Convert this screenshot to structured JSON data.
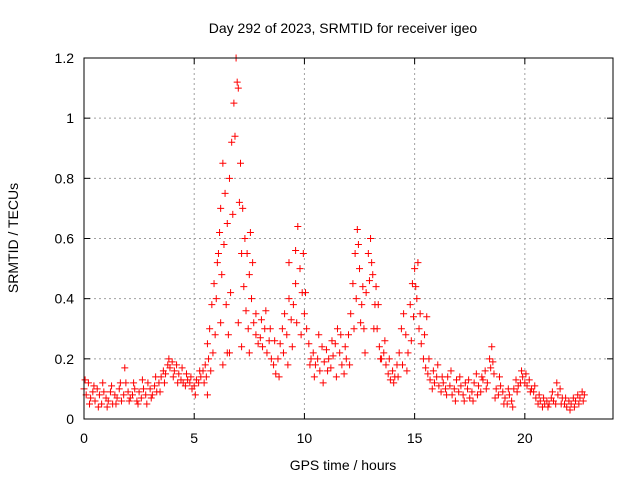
{
  "chart_data": {
    "type": "scatter",
    "title": "Day 292 of 2023, SRMTID for receiver igeo",
    "xlabel": "GPS time / hours",
    "ylabel": "SRMTID / TECUs",
    "xlim": [
      0,
      24
    ],
    "ylim": [
      0,
      1.2
    ],
    "xticks": [
      0,
      5,
      10,
      15,
      20
    ],
    "xtick_labels": [
      "0",
      "5",
      "10",
      "15",
      "20"
    ],
    "yticks": [
      0,
      0.2,
      0.4,
      0.6,
      0.8,
      1.0,
      1.2
    ],
    "ytick_labels": [
      "0",
      "0.2",
      "0.4",
      "0.6",
      "0.8",
      "1",
      "1.2"
    ],
    "grid": true,
    "marker": "plus",
    "series_color": "#ff0000",
    "points": [
      [
        0.0,
        0.1
      ],
      [
        0.1,
        0.08
      ],
      [
        0.2,
        0.12
      ],
      [
        0.3,
        0.07
      ],
      [
        0.4,
        0.09
      ],
      [
        0.5,
        0.06
      ],
      [
        0.6,
        0.1
      ],
      [
        0.7,
        0.08
      ],
      [
        0.8,
        0.05
      ],
      [
        0.9,
        0.09
      ],
      [
        1.0,
        0.07
      ],
      [
        1.1,
        0.06
      ],
      [
        1.2,
        0.09
      ],
      [
        1.3,
        0.05
      ],
      [
        1.4,
        0.08
      ],
      [
        1.5,
        0.07
      ],
      [
        1.6,
        0.1
      ],
      [
        1.7,
        0.06
      ],
      [
        1.8,
        0.08
      ],
      [
        1.9,
        0.12
      ],
      [
        2.0,
        0.09
      ],
      [
        2.1,
        0.07
      ],
      [
        2.2,
        0.08
      ],
      [
        2.3,
        0.1
      ],
      [
        2.4,
        0.06
      ],
      [
        2.5,
        0.09
      ],
      [
        2.6,
        0.07
      ],
      [
        2.7,
        0.1
      ],
      [
        2.8,
        0.08
      ],
      [
        2.9,
        0.12
      ],
      [
        3.0,
        0.1
      ],
      [
        3.1,
        0.08
      ],
      [
        3.2,
        0.11
      ],
      [
        3.3,
        0.09
      ],
      [
        3.4,
        0.12
      ],
      [
        3.5,
        0.14
      ],
      [
        3.6,
        0.16
      ],
      [
        3.7,
        0.15
      ],
      [
        3.8,
        0.18
      ],
      [
        3.9,
        0.17
      ],
      [
        4.0,
        0.19
      ],
      [
        4.1,
        0.16
      ],
      [
        4.2,
        0.18
      ],
      [
        4.3,
        0.15
      ],
      [
        4.4,
        0.13
      ],
      [
        4.5,
        0.12
      ],
      [
        4.6,
        0.11
      ],
      [
        4.7,
        0.13
      ],
      [
        4.8,
        0.12
      ],
      [
        4.9,
        0.1
      ],
      [
        5.0,
        0.11
      ],
      [
        5.1,
        0.13
      ],
      [
        5.2,
        0.12
      ],
      [
        5.3,
        0.14
      ],
      [
        5.4,
        0.16
      ],
      [
        5.5,
        0.18
      ],
      [
        5.6,
        0.25
      ],
      [
        5.7,
        0.3
      ],
      [
        5.8,
        0.38
      ],
      [
        5.9,
        0.45
      ],
      [
        6.0,
        0.4
      ],
      [
        6.1,
        0.55
      ],
      [
        6.2,
        0.7
      ],
      [
        6.3,
        0.85
      ],
      [
        6.4,
        0.75
      ],
      [
        6.5,
        0.65
      ],
      [
        6.6,
        0.8
      ],
      [
        6.7,
        0.92
      ],
      [
        6.8,
        1.05
      ],
      [
        6.9,
        1.2
      ],
      [
        7.0,
        1.1
      ],
      [
        7.1,
        0.85
      ],
      [
        7.2,
        0.7
      ],
      [
        7.3,
        0.6
      ],
      [
        7.4,
        0.55
      ],
      [
        7.5,
        0.48
      ],
      [
        7.6,
        0.4
      ],
      [
        7.7,
        0.32
      ],
      [
        7.8,
        0.28
      ],
      [
        7.9,
        0.25
      ],
      [
        8.0,
        0.27
      ],
      [
        8.1,
        0.24
      ],
      [
        8.2,
        0.3
      ],
      [
        8.3,
        0.22
      ],
      [
        8.4,
        0.26
      ],
      [
        8.5,
        0.2
      ],
      [
        8.6,
        0.18
      ],
      [
        8.7,
        0.15
      ],
      [
        8.8,
        0.2
      ],
      [
        8.9,
        0.25
      ],
      [
        9.0,
        0.3
      ],
      [
        9.1,
        0.35
      ],
      [
        9.2,
        0.28
      ],
      [
        9.3,
        0.4
      ],
      [
        9.4,
        0.33
      ],
      [
        9.5,
        0.38
      ],
      [
        9.6,
        0.45
      ],
      [
        9.7,
        0.64
      ],
      [
        9.8,
        0.5
      ],
      [
        9.9,
        0.42
      ],
      [
        10.0,
        0.35
      ],
      [
        10.1,
        0.3
      ],
      [
        10.2,
        0.25
      ],
      [
        10.3,
        0.2
      ],
      [
        10.4,
        0.22
      ],
      [
        10.5,
        0.18
      ],
      [
        10.6,
        0.2
      ],
      [
        10.7,
        0.16
      ],
      [
        10.8,
        0.24
      ],
      [
        10.9,
        0.19
      ],
      [
        11.0,
        0.23
      ],
      [
        11.1,
        0.2
      ],
      [
        11.2,
        0.17
      ],
      [
        11.3,
        0.21
      ],
      [
        11.4,
        0.25
      ],
      [
        11.5,
        0.3
      ],
      [
        11.6,
        0.22
      ],
      [
        11.7,
        0.18
      ],
      [
        11.8,
        0.15
      ],
      [
        11.9,
        0.2
      ],
      [
        12.0,
        0.28
      ],
      [
        12.1,
        0.35
      ],
      [
        12.2,
        0.45
      ],
      [
        12.3,
        0.55
      ],
      [
        12.4,
        0.63
      ],
      [
        12.5,
        0.5
      ],
      [
        12.6,
        0.38
      ],
      [
        12.7,
        0.3
      ],
      [
        12.8,
        0.42
      ],
      [
        12.9,
        0.55
      ],
      [
        13.0,
        0.6
      ],
      [
        13.1,
        0.48
      ],
      [
        13.2,
        0.38
      ],
      [
        13.3,
        0.3
      ],
      [
        13.4,
        0.24
      ],
      [
        13.5,
        0.2
      ],
      [
        13.6,
        0.22
      ],
      [
        13.7,
        0.18
      ],
      [
        13.8,
        0.15
      ],
      [
        13.9,
        0.13
      ],
      [
        14.0,
        0.16
      ],
      [
        14.1,
        0.14
      ],
      [
        14.2,
        0.18
      ],
      [
        14.3,
        0.22
      ],
      [
        14.4,
        0.3
      ],
      [
        14.5,
        0.35
      ],
      [
        14.6,
        0.28
      ],
      [
        14.7,
        0.22
      ],
      [
        14.8,
        0.38
      ],
      [
        14.9,
        0.45
      ],
      [
        15.0,
        0.5
      ],
      [
        15.1,
        0.4
      ],
      [
        15.2,
        0.3
      ],
      [
        15.3,
        0.25
      ],
      [
        15.4,
        0.2
      ],
      [
        15.5,
        0.17
      ],
      [
        15.6,
        0.15
      ],
      [
        15.7,
        0.13
      ],
      [
        15.8,
        0.1
      ],
      [
        15.9,
        0.12
      ],
      [
        16.0,
        0.14
      ],
      [
        16.1,
        0.11
      ],
      [
        16.2,
        0.09
      ],
      [
        16.3,
        0.12
      ],
      [
        16.4,
        0.1
      ],
      [
        16.5,
        0.14
      ],
      [
        16.6,
        0.11
      ],
      [
        16.7,
        0.08
      ],
      [
        16.8,
        0.1
      ],
      [
        16.9,
        0.13
      ],
      [
        17.0,
        0.09
      ],
      [
        17.1,
        0.11
      ],
      [
        17.2,
        0.08
      ],
      [
        17.3,
        0.12
      ],
      [
        17.4,
        0.1
      ],
      [
        17.5,
        0.07
      ],
      [
        17.6,
        0.09
      ],
      [
        17.7,
        0.12
      ],
      [
        17.8,
        0.15
      ],
      [
        17.9,
        0.11
      ],
      [
        18.0,
        0.09
      ],
      [
        18.1,
        0.13
      ],
      [
        18.2,
        0.16
      ],
      [
        18.3,
        0.12
      ],
      [
        18.4,
        0.2
      ],
      [
        18.5,
        0.24
      ],
      [
        18.6,
        0.15
      ],
      [
        18.7,
        0.1
      ],
      [
        18.8,
        0.08
      ],
      [
        18.9,
        0.11
      ],
      [
        19.0,
        0.09
      ],
      [
        19.1,
        0.07
      ],
      [
        19.2,
        0.05
      ],
      [
        19.3,
        0.08
      ],
      [
        19.4,
        0.06
      ],
      [
        19.5,
        0.1
      ],
      [
        19.6,
        0.13
      ],
      [
        19.7,
        0.11
      ],
      [
        19.8,
        0.12
      ],
      [
        19.9,
        0.14
      ],
      [
        20.0,
        0.12
      ],
      [
        20.1,
        0.11
      ],
      [
        20.2,
        0.13
      ],
      [
        20.3,
        0.1
      ],
      [
        20.4,
        0.09
      ],
      [
        20.5,
        0.07
      ],
      [
        20.6,
        0.05
      ],
      [
        20.7,
        0.06
      ],
      [
        20.8,
        0.04
      ],
      [
        20.9,
        0.05
      ],
      [
        21.0,
        0.06
      ],
      [
        21.1,
        0.05
      ],
      [
        21.2,
        0.07
      ],
      [
        21.3,
        0.06
      ],
      [
        21.4,
        0.05
      ],
      [
        21.5,
        0.08
      ],
      [
        21.6,
        0.1
      ],
      [
        21.7,
        0.07
      ],
      [
        21.8,
        0.05
      ],
      [
        21.9,
        0.04
      ],
      [
        22.0,
        0.06
      ],
      [
        22.1,
        0.05
      ],
      [
        22.2,
        0.07
      ],
      [
        22.3,
        0.06
      ],
      [
        22.4,
        0.08
      ],
      [
        22.5,
        0.07
      ],
      [
        22.6,
        0.09
      ],
      [
        22.7,
        0.08
      ],
      [
        6.05,
        0.52
      ],
      [
        6.15,
        0.62
      ],
      [
        6.25,
        0.48
      ],
      [
        6.35,
        0.58
      ],
      [
        6.45,
        0.38
      ],
      [
        6.55,
        0.28
      ],
      [
        6.65,
        0.42
      ],
      [
        6.75,
        0.68
      ],
      [
        6.85,
        0.94
      ],
      [
        6.95,
        1.12
      ],
      [
        7.05,
        0.72
      ],
      [
        7.15,
        0.55
      ],
      [
        7.25,
        0.44
      ],
      [
        7.35,
        0.36
      ],
      [
        7.45,
        0.3
      ],
      [
        7.55,
        0.62
      ],
      [
        7.65,
        0.52
      ],
      [
        7.15,
        0.24
      ],
      [
        6.6,
        0.22
      ],
      [
        6.2,
        0.32
      ],
      [
        5.65,
        0.2
      ],
      [
        5.75,
        0.16
      ],
      [
        5.85,
        0.22
      ],
      [
        5.95,
        0.28
      ],
      [
        6.3,
        0.18
      ],
      [
        6.5,
        0.22
      ],
      [
        7.0,
        0.32
      ],
      [
        7.5,
        0.22
      ],
      [
        7.8,
        0.35
      ],
      [
        8.05,
        0.33
      ],
      [
        8.25,
        0.36
      ],
      [
        8.45,
        0.3
      ],
      [
        8.65,
        0.26
      ],
      [
        8.85,
        0.14
      ],
      [
        9.05,
        0.22
      ],
      [
        9.25,
        0.18
      ],
      [
        9.45,
        0.24
      ],
      [
        9.65,
        0.32
      ],
      [
        9.85,
        0.28
      ],
      [
        9.95,
        0.55
      ],
      [
        9.6,
        0.56
      ],
      [
        9.3,
        0.52
      ],
      [
        10.05,
        0.42
      ],
      [
        10.25,
        0.18
      ],
      [
        10.45,
        0.14
      ],
      [
        10.65,
        0.28
      ],
      [
        10.85,
        0.12
      ],
      [
        11.05,
        0.16
      ],
      [
        11.25,
        0.26
      ],
      [
        11.45,
        0.14
      ],
      [
        11.65,
        0.28
      ],
      [
        11.85,
        0.24
      ],
      [
        12.05,
        0.18
      ],
      [
        12.25,
        0.3
      ],
      [
        12.35,
        0.4
      ],
      [
        12.45,
        0.58
      ],
      [
        12.55,
        0.32
      ],
      [
        12.75,
        0.22
      ],
      [
        12.95,
        0.46
      ],
      [
        13.05,
        0.52
      ],
      [
        13.15,
        0.3
      ],
      [
        13.25,
        0.44
      ],
      [
        13.35,
        0.38
      ],
      [
        12.65,
        0.44
      ],
      [
        13.45,
        0.2
      ],
      [
        13.65,
        0.26
      ],
      [
        13.85,
        0.2
      ],
      [
        14.05,
        0.12
      ],
      [
        14.25,
        0.14
      ],
      [
        14.45,
        0.18
      ],
      [
        14.65,
        0.16
      ],
      [
        14.85,
        0.26
      ],
      [
        14.95,
        0.34
      ],
      [
        15.05,
        0.44
      ],
      [
        15.15,
        0.52
      ],
      [
        15.25,
        0.35
      ],
      [
        15.45,
        0.28
      ],
      [
        15.55,
        0.34
      ],
      [
        15.65,
        0.2
      ],
      [
        15.85,
        0.16
      ],
      [
        16.05,
        0.18
      ],
      [
        16.25,
        0.14
      ],
      [
        16.45,
        0.08
      ],
      [
        16.65,
        0.16
      ],
      [
        16.85,
        0.06
      ],
      [
        17.05,
        0.14
      ],
      [
        17.25,
        0.06
      ],
      [
        17.45,
        0.13
      ],
      [
        17.65,
        0.06
      ],
      [
        17.85,
        0.08
      ],
      [
        18.05,
        0.14
      ],
      [
        18.25,
        0.1
      ],
      [
        18.45,
        0.17
      ],
      [
        18.55,
        0.19
      ],
      [
        18.65,
        0.07
      ],
      [
        18.85,
        0.14
      ],
      [
        19.05,
        0.05
      ],
      [
        19.25,
        0.1
      ],
      [
        19.45,
        0.04
      ],
      [
        19.65,
        0.09
      ],
      [
        19.85,
        0.16
      ],
      [
        20.05,
        0.15
      ],
      [
        20.25,
        0.09
      ],
      [
        20.45,
        0.11
      ],
      [
        20.65,
        0.08
      ],
      [
        20.85,
        0.07
      ],
      [
        21.05,
        0.04
      ],
      [
        21.25,
        0.09
      ],
      [
        21.45,
        0.12
      ],
      [
        21.65,
        0.05
      ],
      [
        21.85,
        0.07
      ],
      [
        22.05,
        0.03
      ],
      [
        22.25,
        0.04
      ],
      [
        22.45,
        0.05
      ],
      [
        22.65,
        0.06
      ],
      [
        0.05,
        0.13
      ],
      [
        0.25,
        0.05
      ],
      [
        0.45,
        0.11
      ],
      [
        0.65,
        0.04
      ],
      [
        0.85,
        0.12
      ],
      [
        1.05,
        0.04
      ],
      [
        1.25,
        0.11
      ],
      [
        1.45,
        0.05
      ],
      [
        1.65,
        0.12
      ],
      [
        1.85,
        0.17
      ],
      [
        2.05,
        0.06
      ],
      [
        2.25,
        0.12
      ],
      [
        2.45,
        0.05
      ],
      [
        2.65,
        0.13
      ],
      [
        2.85,
        0.05
      ],
      [
        3.05,
        0.07
      ],
      [
        3.25,
        0.14
      ],
      [
        3.45,
        0.09
      ],
      [
        3.65,
        0.12
      ],
      [
        3.85,
        0.2
      ],
      [
        4.05,
        0.14
      ],
      [
        4.25,
        0.12
      ],
      [
        4.45,
        0.17
      ],
      [
        4.65,
        0.15
      ],
      [
        4.85,
        0.14
      ],
      [
        5.05,
        0.08
      ],
      [
        5.25,
        0.16
      ],
      [
        5.45,
        0.12
      ],
      [
        5.55,
        0.14
      ],
      [
        5.6,
        0.08
      ]
    ]
  }
}
